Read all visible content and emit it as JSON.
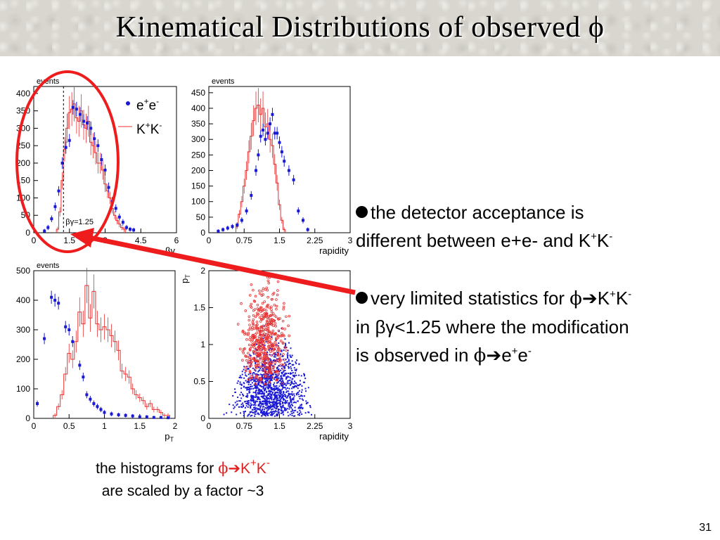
{
  "slide": {
    "title": "Kinematical Distributions of observed ϕ",
    "page_number": "31"
  },
  "bullets": [
    {
      "line1": "the detector acceptance is",
      "line2_prefix": "different between e+e- and K",
      "sup1": "+",
      "mid": "K",
      "sup2": "-"
    },
    {
      "line1_prefix": "very limited statistics for ",
      "phi": "ϕ",
      "arrow": "➔",
      "k1": "K",
      "sup1": "+",
      "k2": "K",
      "sup2": "-",
      "line2": "in βγ<1.25 where the modification",
      "line3_prefix": "is observed in ",
      "phi2": "ϕ",
      "arrow2": "➔",
      "e1": "e",
      "sup3": "+",
      "e2": "e",
      "sup4": "-"
    }
  ],
  "caption": {
    "prefix": "the histograms for ",
    "phi": "ϕ",
    "arrow": "➔",
    "k1": "K",
    "sup1": "+",
    "k2": "K",
    "sup2": "-",
    "line2": "are scaled by a factor ~3"
  },
  "colors": {
    "ee": "#1a1ad6",
    "kk": "#e83030",
    "highlight": "#ee1c1c"
  },
  "chart_data": [
    {
      "type": "histogram",
      "panel": "betagamma",
      "ylabel": "events",
      "xlabel": "βγ",
      "xlim": [
        0,
        6
      ],
      "ylim": [
        0,
        420
      ],
      "xticks": [
        "0",
        "1.5",
        "3",
        "4.5",
        "6"
      ],
      "yticks": [
        "0",
        "50",
        "100",
        "150",
        "200",
        "250",
        "300",
        "350",
        "400"
      ],
      "ytick_values": [
        0,
        50,
        100,
        150,
        200,
        250,
        300,
        350,
        400
      ],
      "xtick_values": [
        0,
        1.5,
        3,
        4.5,
        6
      ],
      "legend": [
        "e+e-",
        "K+K-"
      ],
      "cut_label": "βγ=1.25",
      "cut_value": 1.25,
      "ee_x": [
        0.45,
        0.6,
        0.75,
        0.9,
        1.05,
        1.2,
        1.35,
        1.5,
        1.65,
        1.8,
        1.95,
        2.1,
        2.25,
        2.4,
        2.55,
        2.7,
        2.85,
        3.0,
        3.15,
        3.3,
        3.45,
        3.6,
        3.75,
        3.9,
        4.05,
        4.2
      ],
      "ee_y": [
        5,
        15,
        40,
        75,
        120,
        200,
        245,
        265,
        360,
        355,
        340,
        320,
        315,
        300,
        270,
        250,
        210,
        180,
        130,
        90,
        70,
        45,
        30,
        15,
        10,
        8
      ],
      "kk_x": [
        1.0,
        1.1,
        1.2,
        1.3,
        1.4,
        1.5,
        1.6,
        1.7,
        1.8,
        1.9,
        2.0,
        2.1,
        2.2,
        2.3,
        2.4,
        2.5,
        2.6,
        2.7,
        2.8,
        2.9,
        3.0,
        3.1,
        3.2,
        3.3,
        3.4,
        3.5,
        3.6,
        3.7,
        3.8
      ],
      "kk_y": [
        10,
        60,
        150,
        240,
        300,
        345,
        355,
        370,
        330,
        320,
        350,
        310,
        300,
        320,
        260,
        250,
        230,
        200,
        200,
        180,
        140,
        120,
        100,
        70,
        50,
        35,
        25,
        15,
        10
      ]
    },
    {
      "type": "histogram",
      "panel": "rapidity",
      "ylabel": "events",
      "xlabel": "rapidity",
      "xlim": [
        0,
        3
      ],
      "ylim": [
        0,
        470
      ],
      "xticks": [
        "0",
        "0.75",
        "1.5",
        "2.25",
        "3"
      ],
      "xtick_values": [
        0,
        0.75,
        1.5,
        2.25,
        3
      ],
      "yticks": [
        "0",
        "50",
        "100",
        "150",
        "200",
        "250",
        "300",
        "350",
        "400",
        "450"
      ],
      "ytick_values": [
        0,
        50,
        100,
        150,
        200,
        250,
        300,
        350,
        400,
        450
      ],
      "ee_x": [
        0.2,
        0.3,
        0.4,
        0.5,
        0.6,
        0.7,
        0.8,
        0.9,
        1.0,
        1.05,
        1.1,
        1.15,
        1.2,
        1.25,
        1.3,
        1.35,
        1.4,
        1.45,
        1.5,
        1.55,
        1.6,
        1.7,
        1.8,
        1.9,
        2.0,
        2.1
      ],
      "ee_y": [
        5,
        10,
        15,
        20,
        25,
        40,
        70,
        120,
        200,
        250,
        310,
        330,
        300,
        320,
        350,
        380,
        320,
        320,
        290,
        260,
        230,
        200,
        170,
        70,
        40,
        10
      ],
      "kk_x": [
        0.6,
        0.65,
        0.7,
        0.75,
        0.8,
        0.85,
        0.9,
        0.95,
        1.0,
        1.05,
        1.1,
        1.15,
        1.2,
        1.25,
        1.3,
        1.35,
        1.4,
        1.45,
        1.5,
        1.55,
        1.6
      ],
      "kk_y": [
        20,
        60,
        100,
        150,
        200,
        260,
        310,
        360,
        400,
        410,
        380,
        400,
        340,
        350,
        300,
        280,
        220,
        160,
        90,
        40,
        10
      ]
    },
    {
      "type": "histogram",
      "panel": "pT",
      "ylabel": "events",
      "xlabel": "pT",
      "xlim": [
        0,
        2
      ],
      "ylim": [
        0,
        500
      ],
      "xticks": [
        "0",
        "0.5",
        "1",
        "1.5",
        "2"
      ],
      "xtick_values": [
        0,
        0.5,
        1,
        1.5,
        2
      ],
      "yticks": [
        "0",
        "100",
        "200",
        "300",
        "400",
        "500"
      ],
      "ytick_values": [
        0,
        100,
        200,
        300,
        400,
        500
      ],
      "ee_x": [
        0.05,
        0.15,
        0.25,
        0.3,
        0.35,
        0.45,
        0.5,
        0.55,
        0.65,
        0.7,
        0.75,
        0.8,
        0.85,
        0.9,
        0.95,
        1.0,
        1.1,
        1.2,
        1.3,
        1.4,
        1.5,
        1.6,
        1.7,
        1.8,
        1.9
      ],
      "ee_y": [
        50,
        270,
        410,
        400,
        390,
        310,
        300,
        260,
        180,
        140,
        80,
        65,
        50,
        40,
        30,
        20,
        15,
        12,
        10,
        8,
        5,
        5,
        3,
        3,
        2
      ],
      "kk_x": [
        0.3,
        0.35,
        0.4,
        0.45,
        0.5,
        0.55,
        0.6,
        0.65,
        0.7,
        0.75,
        0.8,
        0.85,
        0.9,
        0.95,
        1.0,
        1.05,
        1.1,
        1.15,
        1.2,
        1.25,
        1.3,
        1.35,
        1.4,
        1.45,
        1.5,
        1.55,
        1.6,
        1.65,
        1.7,
        1.75,
        1.8,
        1.85,
        1.9
      ],
      "kk_y": [
        10,
        40,
        80,
        150,
        220,
        200,
        260,
        360,
        320,
        450,
        340,
        430,
        320,
        300,
        310,
        300,
        280,
        260,
        230,
        160,
        150,
        140,
        100,
        80,
        70,
        60,
        40,
        50,
        30,
        30,
        20,
        10,
        10
      ]
    },
    {
      "type": "scatter",
      "panel": "pT-vs-rapidity",
      "xlabel": "rapidity",
      "ylabel": "pT",
      "xlim": [
        0,
        3
      ],
      "ylim": [
        0,
        2
      ],
      "xticks": [
        "0",
        "0.75",
        "1.5",
        "2.25",
        "3"
      ],
      "xtick_values": [
        0,
        0.75,
        1.5,
        2.25,
        3
      ],
      "yticks": [
        "0",
        "0.5",
        "1",
        "1.5",
        "2"
      ],
      "ytick_values": [
        0,
        0.5,
        1,
        1.5,
        2
      ],
      "ee_center": [
        1.3,
        0.4
      ],
      "ee_spread": [
        0.38,
        0.3
      ],
      "ee_count": 1400,
      "kk_center": [
        1.2,
        1.05
      ],
      "kk_spread": [
        0.22,
        0.32
      ],
      "kk_count": 500
    }
  ]
}
